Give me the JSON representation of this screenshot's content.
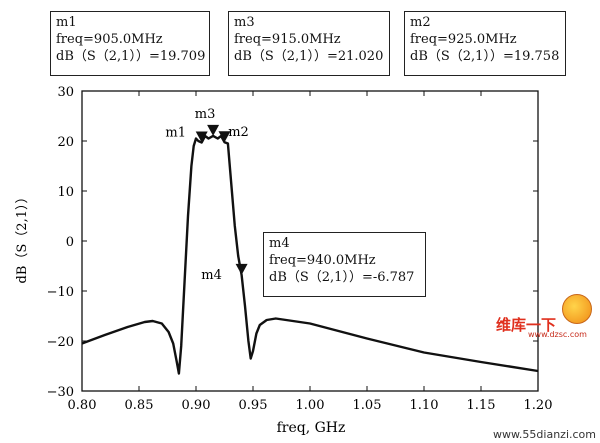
{
  "chart_data": {
    "type": "line",
    "xlabel": "freq, GHz",
    "ylabel": "dB（S（2,1））",
    "xlim": [
      0.8,
      1.2
    ],
    "ylim": [
      -30,
      30
    ],
    "x_ticks": [
      "0.80",
      "0.85",
      "0.90",
      "0.95",
      "1.00",
      "1.05",
      "1.10",
      "1.15",
      "1.20"
    ],
    "y_ticks": [
      "30",
      "20",
      "10",
      "0",
      "-10",
      "-20",
      "-30"
    ],
    "grid": false,
    "series": [
      {
        "x": [
          0.8,
          0.82,
          0.84,
          0.855,
          0.862,
          0.87,
          0.876,
          0.88,
          0.883,
          0.885,
          0.887,
          0.89,
          0.893,
          0.896,
          0.898,
          0.9,
          0.902,
          0.905,
          0.908,
          0.911,
          0.915,
          0.919,
          0.922,
          0.925,
          0.928,
          0.93,
          0.934,
          0.937,
          0.94,
          0.943,
          0.946,
          0.948,
          0.95,
          0.953,
          0.956,
          0.962,
          0.97,
          0.985,
          1.0,
          1.05,
          1.1,
          1.15,
          1.2
        ],
        "values": [
          -20.5,
          -18.8,
          -17.2,
          -16.2,
          -16.0,
          -16.5,
          -18.2,
          -20.5,
          -24.0,
          -26.5,
          -21.0,
          -8.0,
          5.0,
          15.0,
          19.0,
          20.5,
          20.0,
          19.709,
          21.0,
          20.5,
          21.02,
          20.5,
          21.0,
          19.758,
          19.5,
          14.0,
          3.0,
          -3.0,
          -6.787,
          -13.0,
          -20.0,
          -23.5,
          -22.0,
          -18.5,
          -16.8,
          -15.8,
          -15.5,
          -16.0,
          -16.5,
          -19.5,
          -22.3,
          -24.2,
          -26.0
        ]
      }
    ],
    "markers": [
      {
        "label": "m1",
        "freq": "freq=905.0MHz",
        "value": "dB（S（2,1））=19.709",
        "x": 0.905,
        "y": 19.709
      },
      {
        "label": "m3",
        "freq": "freq=915.0MHz",
        "value": "dB（S（2,1））=21.020",
        "x": 0.915,
        "y": 21.02
      },
      {
        "label": "m2",
        "freq": "freq=925.0MHz",
        "value": "dB（S（2,1））=19.758",
        "x": 0.925,
        "y": 19.758
      },
      {
        "label": "m4",
        "freq": "freq=940.0MHz",
        "value": "dB（S（2,1））=-6.787",
        "x": 0.94,
        "y": -6.787
      }
    ]
  },
  "logo": {
    "cn": "维库一下",
    "url": "www.dzsc.com"
  },
  "watermark": "www.55dianzi.com"
}
